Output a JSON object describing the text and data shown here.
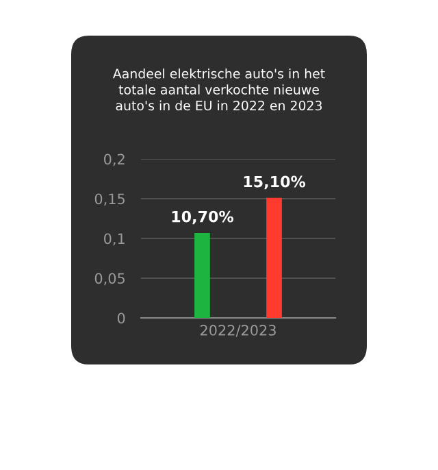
{
  "chart_data": {
    "type": "bar",
    "title": "Aandeel elektrische auto's in het\ntotale aantal verkochte nieuwe\nauto's in de EU in 2022 en 2023",
    "categories": [
      "2022/2023"
    ],
    "series": [
      {
        "color": "#1db440",
        "values": [
          0.107
        ],
        "value_labels": [
          "10,70%"
        ]
      },
      {
        "color": "#ff3b30",
        "values": [
          0.151
        ],
        "value_labels": [
          "15,10%"
        ]
      }
    ],
    "ylim": [
      0,
      0.2
    ],
    "yticks": [
      {
        "value": 0,
        "label": "0"
      },
      {
        "value": 0.05,
        "label": "0,05"
      },
      {
        "value": 0.1,
        "label": "0,1"
      },
      {
        "value": 0.15,
        "label": "0,15"
      },
      {
        "value": 0.2,
        "label": "0,2"
      }
    ],
    "grid": "y",
    "legend": false
  }
}
